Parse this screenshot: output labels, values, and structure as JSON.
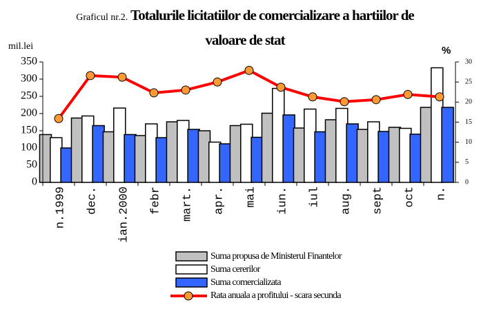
{
  "chart_data": {
    "type": "bar_line",
    "chart_number": "Graficul nr.2.",
    "title": "Totalurile licitatiilor de comercializare a hartiilor de valoare de stat",
    "y_label": "mil.lei",
    "y2_label": "%",
    "categories": [
      "n.1999",
      "dec.",
      "ian.2000",
      "febr",
      "mart.",
      "apr.",
      "mai",
      "iun.",
      "iul",
      "aug.",
      "sept",
      "oct",
      "n."
    ],
    "series": [
      {
        "name": "Suma propusa de Ministerul Finantelor",
        "color": "#c0c0c0",
        "kind": "bar",
        "values": [
          139,
          187,
          147,
          136,
          176,
          150,
          165,
          201,
          158,
          182,
          154,
          160,
          218
        ]
      },
      {
        "name": "Suma cererilor",
        "color": "#ffffff",
        "kind": "bar",
        "values": [
          130,
          193,
          216,
          170,
          180,
          117,
          169,
          273,
          213,
          215,
          176,
          157,
          333
        ]
      },
      {
        "name": "Suma comercializata",
        "color": "#3366ff",
        "kind": "bar",
        "values": [
          100,
          165,
          139,
          130,
          154,
          112,
          131,
          196,
          147,
          170,
          148,
          140,
          218
        ]
      },
      {
        "name": "Rata anuala a profitului - scara secunda",
        "color": "#ff0000",
        "marker_color": "#ff9933",
        "kind": "line",
        "axis": "y2",
        "values": [
          15.9,
          26.6,
          26.2,
          22.3,
          23.0,
          25.0,
          27.9,
          23.7,
          21.3,
          20.1,
          20.6,
          21.9,
          21.3
        ]
      }
    ],
    "ylim": [
      0,
      350
    ],
    "yticks": [
      0,
      50,
      100,
      150,
      200,
      250,
      300,
      350
    ],
    "y2lim": [
      0,
      30
    ],
    "y2ticks": [
      0,
      5,
      10,
      15,
      20,
      25,
      30
    ]
  }
}
